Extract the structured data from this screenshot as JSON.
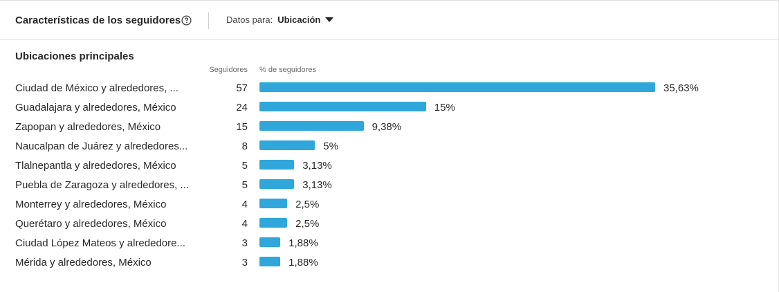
{
  "header": {
    "title": "Características de los seguidores",
    "filter_label": "Datos para:",
    "filter_value": "Ubicación"
  },
  "section_title": "Ubicaciones principales",
  "columns": {
    "followers": "Seguidores",
    "percent": "% de seguidores"
  },
  "colors": {
    "bar": "#2fa7da"
  },
  "chart_data": {
    "type": "bar",
    "orientation": "horizontal",
    "categories": [
      "Ciudad de México y alrededores, ...",
      "Guadalajara y alrededores, México",
      "Zapopan y alrededores, México",
      "Naucalpan de Juárez y alrededores...",
      "Tlalnepantla y alrededores, México",
      "Puebla de Zaragoza y alrededores, ...",
      "Monterrey y alrededores, México",
      "Querétaro y alrededores, México",
      "Ciudad López Mateos y alrededore...",
      "Mérida y alrededores, México"
    ],
    "counts": [
      57,
      24,
      15,
      8,
      5,
      5,
      4,
      4,
      3,
      3
    ],
    "values": [
      35.63,
      15,
      9.38,
      5,
      3.13,
      3.13,
      2.5,
      2.5,
      1.88,
      1.88
    ],
    "value_labels": [
      "35,63%",
      "15%",
      "9,38%",
      "5%",
      "3,13%",
      "3,13%",
      "2,5%",
      "2,5%",
      "1,88%",
      "1,88%"
    ]
  }
}
